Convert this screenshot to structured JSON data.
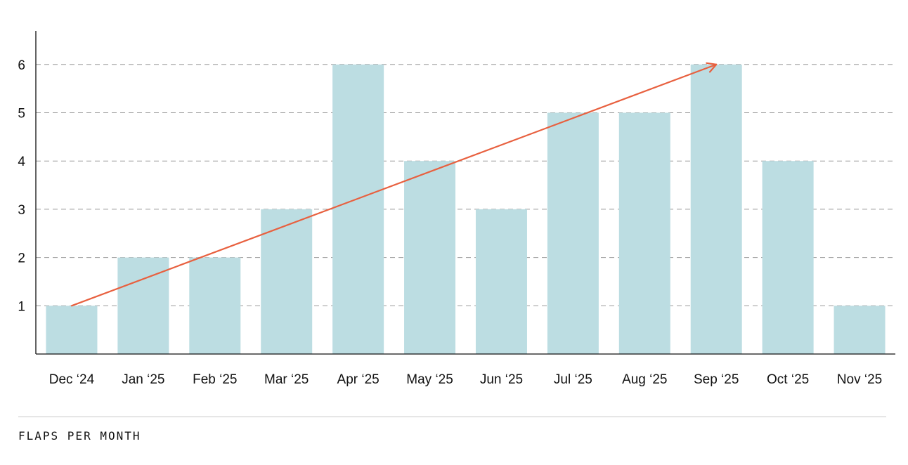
{
  "chart_data": {
    "type": "bar",
    "categories": [
      "Dec ‘24",
      "Jan ‘25",
      "Feb ‘25",
      "Mar ‘25",
      "Apr ‘25",
      "May ‘25",
      "Jun ‘25",
      "Jul ‘25",
      "Aug ‘25",
      "Sep ‘25",
      "Oct ‘25",
      "Nov ‘25"
    ],
    "values": [
      1,
      2,
      2,
      3,
      6,
      4,
      3,
      5,
      5,
      6,
      4,
      1
    ],
    "title": "",
    "xlabel": "",
    "ylabel": "",
    "ylim": [
      0,
      6.7
    ],
    "yticks": [
      1,
      2,
      3,
      4,
      5,
      6
    ],
    "grid": "horizontal-dashed",
    "bar_color": "#bcdde2",
    "trend_arrow": {
      "from": {
        "category": "Dec ‘24",
        "value": 1
      },
      "to": {
        "category": "Sep ‘25",
        "value": 6
      },
      "color": "#e8603f"
    }
  },
  "caption": "FLAPS PER MONTH"
}
